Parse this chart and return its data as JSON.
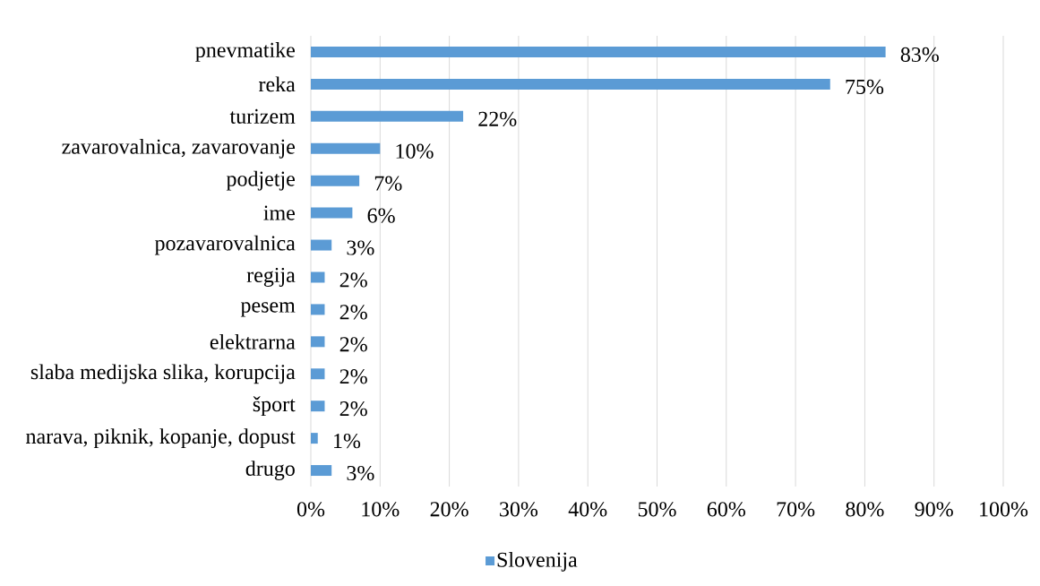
{
  "chart_data": {
    "type": "bar",
    "orientation": "horizontal",
    "categories": [
      "pnevmatike",
      "reka",
      "turizem",
      "zavarovalnica, zavarovanje",
      "podjetje",
      "ime",
      "pozavarovalnica",
      "regija",
      "pesem",
      "elektrarna",
      "slaba medijska slika, korupcija",
      "šport",
      "narava, piknik, kopanje, dopust",
      "drugo"
    ],
    "series": [
      {
        "name": "Slovenija",
        "color": "#5b9bd5",
        "values": [
          83,
          75,
          22,
          10,
          7,
          6,
          3,
          2,
          2,
          2,
          2,
          2,
          1,
          3
        ],
        "value_labels": [
          "83%",
          "75%",
          "22%",
          "10%",
          "7%",
          "6%",
          "3%",
          "2%",
          "2%",
          "2%",
          "2%",
          "2%",
          "1%",
          "3%"
        ]
      }
    ],
    "xlim": [
      0,
      100
    ],
    "xticks": [
      {
        "value": 0,
        "label": "0%"
      },
      {
        "value": 10,
        "label": "10%"
      },
      {
        "value": 20,
        "label": "20%"
      },
      {
        "value": 30,
        "label": "30%"
      },
      {
        "value": 40,
        "label": "40%"
      },
      {
        "value": 50,
        "label": "50%"
      },
      {
        "value": 60,
        "label": "60%"
      },
      {
        "value": 70,
        "label": "70%"
      },
      {
        "value": 80,
        "label": "80%"
      },
      {
        "value": 90,
        "label": "90%"
      },
      {
        "value": 100,
        "label": "100%"
      }
    ],
    "grid": "x",
    "legend": "bottom"
  }
}
